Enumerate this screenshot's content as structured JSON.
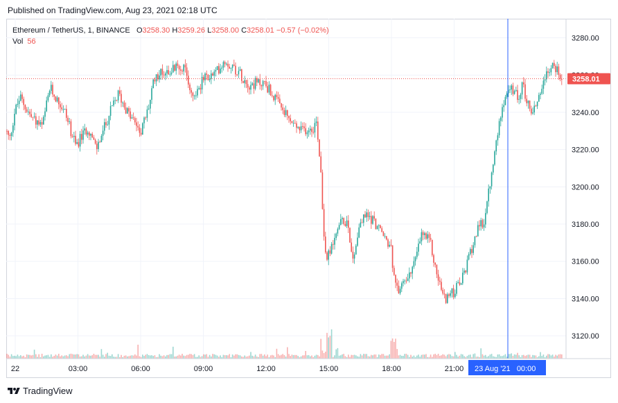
{
  "header": {
    "published": "Published on TradingView.com, Aug 23, 2021 02:18 UTC"
  },
  "legend": {
    "symbol": "Ethereum / TetherUS, 1, BINANCE",
    "o_label": "O",
    "o_value": "3258.30",
    "h_label": "H",
    "h_value": "3259.26",
    "l_label": "L",
    "l_value": "3258.00",
    "c_label": "C",
    "c_value": "3258.01",
    "change": "−0.57 (−0.02%)",
    "vol_label": "Vol",
    "vol_value": "56"
  },
  "footer": {
    "brand": "TradingView"
  },
  "colors": {
    "up": "#26a69a",
    "down": "#ef5350",
    "crosshair": "#2962ff",
    "grid": "#f0f3fa"
  },
  "chart_data": {
    "type": "candlestick",
    "y_ticks": [
      "3280.00",
      "3260.00",
      "3240.00",
      "3220.00",
      "3200.00",
      "3180.00",
      "3160.00",
      "3140.00",
      "3120.00"
    ],
    "x_ticks": [
      "22",
      "03:00",
      "06:00",
      "09:00",
      "12:00",
      "15:00",
      "18:00",
      "21:00"
    ],
    "ylim": [
      3110,
      3288
    ],
    "last_price": "3258.01",
    "crosshair_time_label": "23 Aug '21   00:00",
    "close_path": [
      [
        0,
        3230
      ],
      [
        5,
        3225
      ],
      [
        12,
        3240
      ],
      [
        20,
        3248
      ],
      [
        35,
        3238
      ],
      [
        52,
        3232
      ],
      [
        63,
        3253
      ],
      [
        85,
        3240
      ],
      [
        100,
        3222
      ],
      [
        118,
        3232
      ],
      [
        130,
        3220
      ],
      [
        150,
        3240
      ],
      [
        162,
        3250
      ],
      [
        178,
        3238
      ],
      [
        195,
        3230
      ],
      [
        205,
        3242
      ],
      [
        215,
        3260
      ],
      [
        230,
        3262
      ],
      [
        255,
        3265
      ],
      [
        270,
        3248
      ],
      [
        285,
        3258
      ],
      [
        300,
        3260
      ],
      [
        315,
        3268
      ],
      [
        335,
        3262
      ],
      [
        350,
        3255
      ],
      [
        372,
        3256
      ],
      [
        380,
        3252
      ],
      [
        395,
        3243
      ],
      [
        410,
        3235
      ],
      [
        425,
        3230
      ],
      [
        443,
        3232
      ],
      [
        448,
        3235
      ],
      [
        455,
        3205
      ],
      [
        458,
        3175
      ],
      [
        462,
        3160
      ],
      [
        470,
        3168
      ],
      [
        480,
        3180
      ],
      [
        493,
        3182
      ],
      [
        500,
        3160
      ],
      [
        510,
        3180
      ],
      [
        520,
        3185
      ],
      [
        530,
        3182
      ],
      [
        540,
        3176
      ],
      [
        555,
        3168
      ],
      [
        560,
        3150
      ],
      [
        565,
        3143
      ],
      [
        575,
        3150
      ],
      [
        590,
        3160
      ],
      [
        600,
        3175
      ],
      [
        612,
        3170
      ],
      [
        620,
        3155
      ],
      [
        632,
        3140
      ],
      [
        645,
        3143
      ],
      [
        658,
        3150
      ],
      [
        668,
        3162
      ],
      [
        678,
        3175
      ],
      [
        690,
        3182
      ],
      [
        700,
        3205
      ],
      [
        708,
        3225
      ],
      [
        716,
        3245
      ],
      [
        722,
        3250
      ],
      [
        730,
        3252
      ],
      [
        738,
        3248
      ],
      [
        746,
        3255
      ],
      [
        752,
        3245
      ],
      [
        760,
        3240
      ],
      [
        770,
        3250
      ],
      [
        780,
        3262
      ],
      [
        790,
        3265
      ],
      [
        797,
        3262
      ],
      [
        803,
        3258
      ]
    ]
  }
}
